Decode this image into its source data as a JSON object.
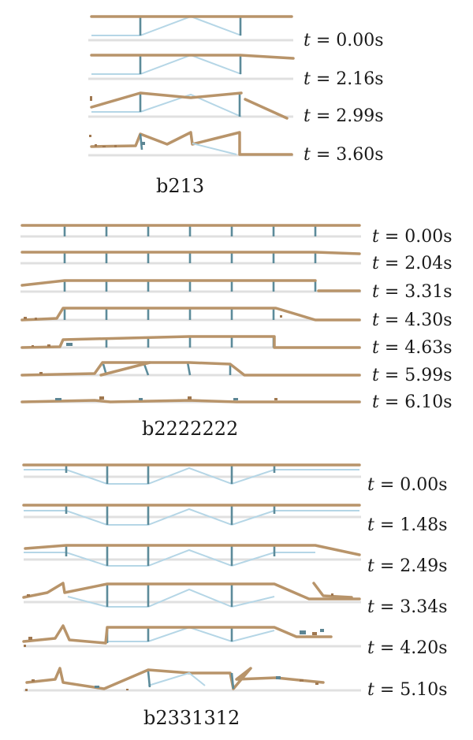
{
  "panels": [
    {
      "caption": "b213",
      "frames": [
        {
          "t": "0.00"
        },
        {
          "t": "2.16"
        },
        {
          "t": "2.99"
        },
        {
          "t": "3.60"
        }
      ]
    },
    {
      "caption": "b2222222",
      "frames": [
        {
          "t": "0.00"
        },
        {
          "t": "2.04"
        },
        {
          "t": "3.31"
        },
        {
          "t": "4.30"
        },
        {
          "t": "4.63"
        },
        {
          "t": "5.99"
        },
        {
          "t": "6.10"
        }
      ]
    },
    {
      "caption": "b2331312",
      "frames": [
        {
          "t": "0.00"
        },
        {
          "t": "1.48"
        },
        {
          "t": "2.49"
        },
        {
          "t": "3.34"
        },
        {
          "t": "4.20"
        },
        {
          "t": "5.10"
        }
      ]
    }
  ],
  "symbol": "t",
  "equals": "=",
  "unit": "s",
  "colors": {
    "beam": "#b8946a",
    "strut": "#b5d6e6",
    "post": "#5c8b9a",
    "ground": "#e0e0e0"
  }
}
